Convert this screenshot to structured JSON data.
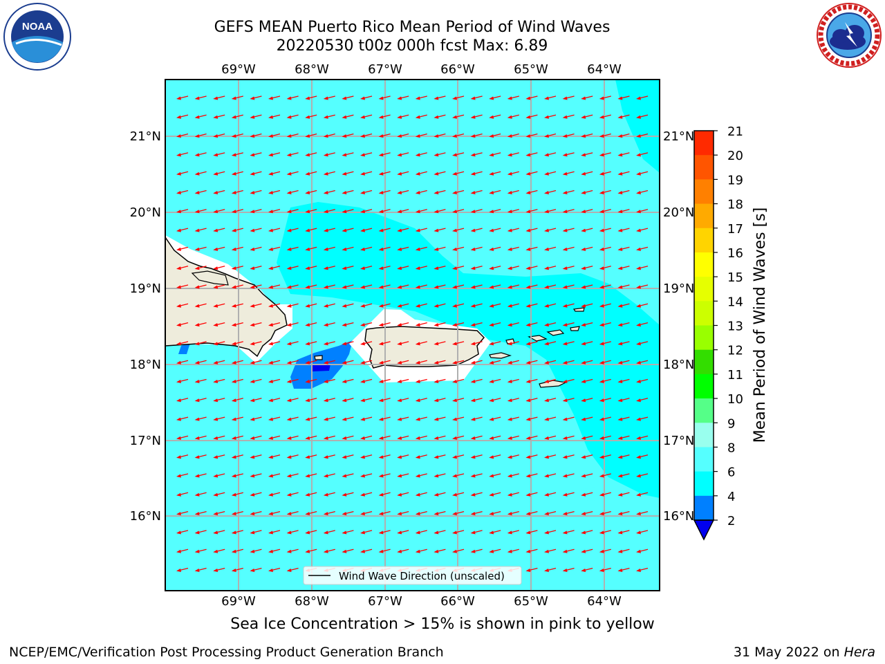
{
  "title": {
    "line1": "GEFS MEAN Puerto Rico Mean Period of Wind Waves",
    "line2": "20220530 t00z 000h fcst   Max: 6.89"
  },
  "map": {
    "lon_labels": [
      "69°W",
      "68°W",
      "67°W",
      "66°W",
      "65°W",
      "64°W"
    ],
    "lat_labels": [
      "21°N",
      "20°N",
      "19°N",
      "18°N",
      "17°N",
      "16°N"
    ],
    "land_color": "#eeecdc",
    "ocean_color": "#00ffff",
    "arrow_color": "#ff0000",
    "legend_label": "Wind Wave Direction (unscaled)"
  },
  "colorbar": {
    "label": "Mean Period of Wind Waves [s]",
    "ticks": [
      "21",
      "20",
      "19",
      "18",
      "17",
      "16",
      "15",
      "14",
      "13",
      "12",
      "11",
      "10",
      "9",
      "8",
      "6",
      "4",
      "2"
    ],
    "colors": [
      "#ff0000",
      "#ff2a00",
      "#ff5500",
      "#ff8000",
      "#ffaa00",
      "#ffd400",
      "#ffff00",
      "#e6ff00",
      "#ccff00",
      "#99ff00",
      "#33dd00",
      "#00ff00",
      "#55ff88",
      "#99ffee",
      "#55ffff",
      "#00ffff",
      "#0080ff",
      "#0000ee"
    ]
  },
  "notes": {
    "sea_ice": "Sea Ice Concentration > 15% is shown in pink to yellow"
  },
  "footer": {
    "left": "NCEP/EMC/Verification Post Processing Product Generation Branch",
    "right_prefix": "31 May 2022 on ",
    "right_host": "Hera"
  },
  "logos": {
    "noaa": "NOAA",
    "nws": "NATIONAL WEATHER SERVICE"
  }
}
